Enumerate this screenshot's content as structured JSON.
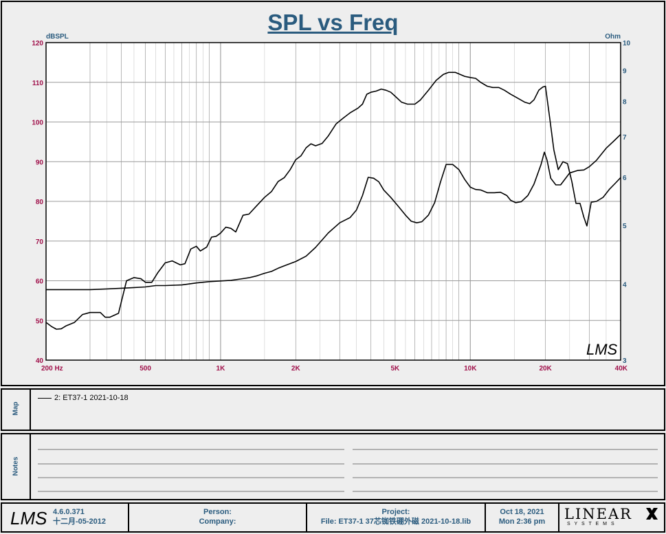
{
  "chart_data": {
    "type": "line",
    "title": "SPL vs Freq",
    "left_axis_unit": "dBSPL",
    "right_axis_unit": "Ohm",
    "x_axis": {
      "scale": "log",
      "range": [
        200,
        40000
      ],
      "ticks": [
        {
          "value": 200,
          "label": "200  Hz"
        },
        {
          "value": 500,
          "label": "500"
        },
        {
          "value": 1000,
          "label": "1K"
        },
        {
          "value": 2000,
          "label": "2K"
        },
        {
          "value": 5000,
          "label": "5K"
        },
        {
          "value": 10000,
          "label": "10K"
        },
        {
          "value": 20000,
          "label": "20K"
        },
        {
          "value": 40000,
          "label": "40K"
        }
      ]
    },
    "y_left": {
      "range": [
        40,
        120
      ],
      "ticks": [
        "120",
        "110",
        "100",
        "90",
        "80",
        "70",
        "60",
        "50",
        "40"
      ]
    },
    "y_right": {
      "scale": "log",
      "range": [
        3,
        10
      ],
      "ticks": [
        {
          "value": 10,
          "label": "10"
        },
        {
          "value": 9,
          "label": "9"
        },
        {
          "value": 8,
          "label": "8"
        },
        {
          "value": 7,
          "label": "7"
        },
        {
          "value": 6,
          "label": "6"
        },
        {
          "value": 5,
          "label": "5"
        },
        {
          "value": 4,
          "label": "4"
        },
        {
          "value": 3,
          "label": "3"
        }
      ]
    },
    "grid": true,
    "series": [
      {
        "axis": "left",
        "points": [
          [
            200,
            49.5
          ],
          [
            210,
            48.5
          ],
          [
            220,
            47.8
          ],
          [
            230,
            47.9
          ],
          [
            240,
            48.6
          ],
          [
            260,
            49.5
          ],
          [
            280,
            51.5
          ],
          [
            300,
            52
          ],
          [
            330,
            52
          ],
          [
            345,
            50.8
          ],
          [
            360,
            50.8
          ],
          [
            390,
            51.8
          ],
          [
            420,
            60
          ],
          [
            450,
            60.8
          ],
          [
            480,
            60.5
          ],
          [
            500,
            59.6
          ],
          [
            530,
            59.6
          ],
          [
            560,
            62
          ],
          [
            600,
            64.5
          ],
          [
            640,
            65
          ],
          [
            690,
            64
          ],
          [
            720,
            64.3
          ],
          [
            760,
            68
          ],
          [
            800,
            68.7
          ],
          [
            830,
            67.5
          ],
          [
            880,
            68.5
          ],
          [
            920,
            71
          ],
          [
            960,
            71.2
          ],
          [
            1000,
            72
          ],
          [
            1050,
            73.5
          ],
          [
            1100,
            73.2
          ],
          [
            1150,
            72.3
          ],
          [
            1230,
            76.5
          ],
          [
            1300,
            76.8
          ],
          [
            1400,
            79
          ],
          [
            1500,
            81
          ],
          [
            1600,
            82.5
          ],
          [
            1700,
            85
          ],
          [
            1800,
            86
          ],
          [
            1900,
            88
          ],
          [
            2000,
            90.5
          ],
          [
            2100,
            91.5
          ],
          [
            2200,
            93.5
          ],
          [
            2300,
            94.5
          ],
          [
            2400,
            94
          ],
          [
            2550,
            94.6
          ],
          [
            2700,
            96.5
          ],
          [
            2900,
            99.5
          ],
          [
            3100,
            101
          ],
          [
            3300,
            102.3
          ],
          [
            3550,
            103.5
          ],
          [
            3700,
            104.5
          ],
          [
            3850,
            107
          ],
          [
            4000,
            107.5
          ],
          [
            4200,
            107.8
          ],
          [
            4400,
            108.3
          ],
          [
            4600,
            108
          ],
          [
            4800,
            107.5
          ],
          [
            5000,
            106.5
          ],
          [
            5300,
            105
          ],
          [
            5600,
            104.5
          ],
          [
            6000,
            104.5
          ],
          [
            6300,
            105.5
          ],
          [
            6800,
            108
          ],
          [
            7300,
            110.5
          ],
          [
            7800,
            112
          ],
          [
            8200,
            112.5
          ],
          [
            8700,
            112.5
          ],
          [
            9100,
            112
          ],
          [
            9500,
            111.5
          ],
          [
            10000,
            111.2
          ],
          [
            10500,
            111
          ],
          [
            11000,
            110
          ],
          [
            11700,
            109
          ],
          [
            12300,
            108.7
          ],
          [
            13000,
            108.7
          ],
          [
            13700,
            108
          ],
          [
            14500,
            107
          ],
          [
            15500,
            106
          ],
          [
            16500,
            105
          ],
          [
            17300,
            104.6
          ],
          [
            18000,
            105.6
          ],
          [
            18800,
            108
          ],
          [
            19500,
            108.8
          ],
          [
            20000,
            109
          ],
          [
            20800,
            101
          ],
          [
            21600,
            93
          ],
          [
            22500,
            88
          ],
          [
            23500,
            90
          ],
          [
            24500,
            89.5
          ],
          [
            25500,
            85
          ],
          [
            26500,
            79.5
          ],
          [
            27500,
            79.5
          ],
          [
            28500,
            76
          ],
          [
            29300,
            73.8
          ],
          [
            30500,
            79.8
          ],
          [
            32000,
            80
          ],
          [
            34000,
            81
          ],
          [
            36000,
            83
          ],
          [
            38000,
            84.5
          ],
          [
            40000,
            86
          ]
        ]
      },
      {
        "axis": "right",
        "points": [
          [
            200,
            3.92
          ],
          [
            250,
            3.92
          ],
          [
            300,
            3.92
          ],
          [
            350,
            3.93
          ],
          [
            400,
            3.94
          ],
          [
            450,
            3.95
          ],
          [
            500,
            3.96
          ],
          [
            550,
            3.98
          ],
          [
            600,
            3.98
          ],
          [
            700,
            3.99
          ],
          [
            800,
            4.02
          ],
          [
            900,
            4.04
          ],
          [
            1000,
            4.05
          ],
          [
            1100,
            4.06
          ],
          [
            1200,
            4.08
          ],
          [
            1300,
            4.1
          ],
          [
            1400,
            4.13
          ],
          [
            1500,
            4.17
          ],
          [
            1600,
            4.2
          ],
          [
            1700,
            4.25
          ],
          [
            1800,
            4.29
          ],
          [
            2000,
            4.36
          ],
          [
            2200,
            4.45
          ],
          [
            2400,
            4.6
          ],
          [
            2700,
            4.86
          ],
          [
            3000,
            5.05
          ],
          [
            3300,
            5.15
          ],
          [
            3500,
            5.3
          ],
          [
            3700,
            5.6
          ],
          [
            3900,
            6.0
          ],
          [
            4100,
            5.98
          ],
          [
            4300,
            5.9
          ],
          [
            4500,
            5.72
          ],
          [
            4800,
            5.56
          ],
          [
            5100,
            5.4
          ],
          [
            5500,
            5.2
          ],
          [
            5800,
            5.08
          ],
          [
            6100,
            5.05
          ],
          [
            6400,
            5.07
          ],
          [
            6800,
            5.2
          ],
          [
            7200,
            5.45
          ],
          [
            7600,
            5.9
          ],
          [
            8000,
            6.3
          ],
          [
            8500,
            6.3
          ],
          [
            9000,
            6.18
          ],
          [
            9500,
            5.95
          ],
          [
            10000,
            5.78
          ],
          [
            10500,
            5.73
          ],
          [
            11000,
            5.72
          ],
          [
            11700,
            5.66
          ],
          [
            12500,
            5.66
          ],
          [
            13200,
            5.67
          ],
          [
            14000,
            5.6
          ],
          [
            14500,
            5.5
          ],
          [
            15200,
            5.45
          ],
          [
            16000,
            5.47
          ],
          [
            17000,
            5.6
          ],
          [
            18000,
            5.85
          ],
          [
            19200,
            6.3
          ],
          [
            19800,
            6.6
          ],
          [
            20300,
            6.4
          ],
          [
            21000,
            5.98
          ],
          [
            22000,
            5.83
          ],
          [
            23000,
            5.83
          ],
          [
            25000,
            6.1
          ],
          [
            27000,
            6.16
          ],
          [
            28500,
            6.17
          ],
          [
            30000,
            6.25
          ],
          [
            32000,
            6.4
          ],
          [
            35000,
            6.7
          ],
          [
            37500,
            6.88
          ],
          [
            40000,
            7.06
          ]
        ]
      }
    ]
  },
  "map": {
    "label": "Map",
    "legend_entry": "2: ET37-1 2021-10-18"
  },
  "notes": {
    "label": "Notes"
  },
  "footer": {
    "version": "4.6.0.371",
    "build_date": "十二月-05-2012",
    "person_label": "Person:",
    "company_label": "Company:",
    "project_label": "Project:",
    "file_label": "File: ET37-1 37芯铷铁硼外磁 2021-10-18.lib",
    "date": "Oct 18, 2021",
    "time": "Mon  2:36 pm",
    "brand_main": "LINEAR",
    "brand_sub": "S Y S T E M S"
  },
  "colors": {
    "axis_label": "#a0104a",
    "axis_unit": "#2a5b7e",
    "curve": "#000000",
    "grid": "#9a9a9a"
  }
}
